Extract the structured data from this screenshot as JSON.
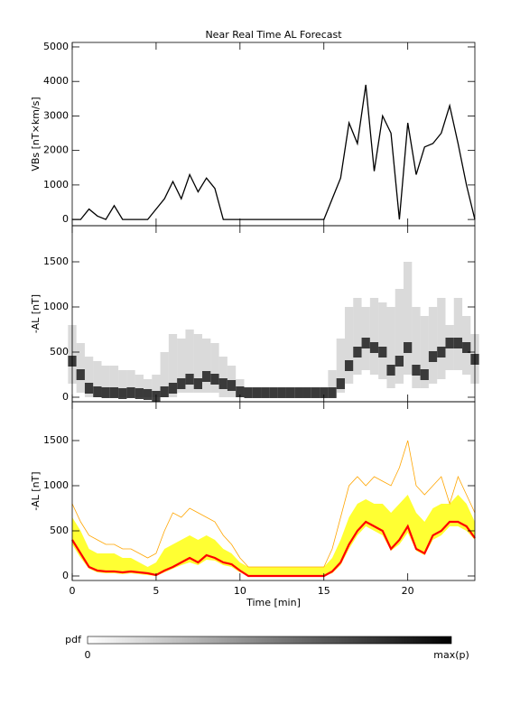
{
  "chart_data": [
    {
      "type": "line",
      "title": "Near Real Time AL Forecast",
      "ylabel": "VBs [nT×km/s]",
      "color": "#000000",
      "x": [
        0,
        0.5,
        1,
        1.5,
        2,
        2.5,
        3,
        3.5,
        4,
        4.5,
        5,
        5.5,
        6,
        6.5,
        7,
        7.5,
        8,
        8.5,
        9,
        9.5,
        10,
        10.5,
        11,
        11.5,
        12,
        12.5,
        13,
        13.5,
        14,
        14.5,
        15,
        15.5,
        16,
        16.5,
        17,
        17.5,
        18,
        18.5,
        19,
        19.5,
        20,
        20.5,
        21,
        21.5,
        22,
        22.5,
        23,
        23.5,
        24
      ],
      "values": [
        0,
        0,
        300,
        100,
        0,
        400,
        0,
        0,
        0,
        0,
        300,
        600,
        1100,
        600,
        1300,
        800,
        1200,
        900,
        0,
        0,
        0,
        0,
        0,
        0,
        0,
        0,
        0,
        0,
        0,
        0,
        0,
        600,
        1200,
        2800,
        2200,
        3900,
        1400,
        3000,
        2500,
        0,
        2800,
        1300,
        2100,
        2200,
        2500,
        3300,
        2200,
        1000,
        0
      ],
      "xlim": [
        0,
        24
      ],
      "xticks": [
        0,
        5,
        10,
        15,
        20
      ],
      "ylim": [
        -180,
        5130
      ],
      "yticks": [
        0,
        1000,
        2000,
        3000,
        4000,
        5000
      ]
    },
    {
      "type": "density",
      "ylabel": "-AL [nT]",
      "x": [
        0,
        0.5,
        1,
        1.5,
        2,
        2.5,
        3,
        3.5,
        4,
        4.5,
        5,
        5.5,
        6,
        6.5,
        7,
        7.5,
        8,
        8.5,
        9,
        9.5,
        10,
        10.5,
        11,
        11.5,
        12,
        12.5,
        13,
        13.5,
        14,
        14.5,
        15,
        15.5,
        16,
        16.5,
        17,
        17.5,
        18,
        18.5,
        19,
        19.5,
        20,
        20.5,
        21,
        21.5,
        22,
        22.5,
        23,
        23.5,
        24
      ],
      "low": [
        150,
        50,
        0,
        0,
        0,
        0,
        0,
        0,
        0,
        0,
        0,
        0,
        0,
        50,
        50,
        50,
        50,
        50,
        0,
        0,
        0,
        0,
        0,
        0,
        0,
        0,
        0,
        0,
        0,
        0,
        0,
        0,
        50,
        150,
        250,
        300,
        250,
        200,
        100,
        150,
        250,
        100,
        100,
        150,
        200,
        300,
        300,
        250,
        150
      ],
      "mode": [
        400,
        250,
        100,
        60,
        50,
        50,
        40,
        50,
        40,
        30,
        10,
        60,
        100,
        150,
        200,
        150,
        230,
        200,
        150,
        130,
        60,
        50,
        50,
        50,
        50,
        50,
        50,
        50,
        50,
        50,
        50,
        50,
        150,
        350,
        500,
        600,
        550,
        500,
        300,
        400,
        550,
        300,
        250,
        450,
        500,
        600,
        600,
        550,
        420
      ],
      "high": [
        800,
        600,
        450,
        400,
        350,
        350,
        300,
        300,
        250,
        200,
        250,
        500,
        700,
        650,
        750,
        700,
        650,
        600,
        450,
        350,
        200,
        100,
        100,
        100,
        100,
        100,
        100,
        100,
        100,
        100,
        100,
        300,
        650,
        1000,
        1100,
        1000,
        1100,
        1050,
        1000,
        1200,
        1500,
        1000,
        900,
        1000,
        1100,
        800,
        1100,
        900,
        700
      ],
      "xlim": [
        0,
        24
      ],
      "xticks": [
        0,
        5,
        10,
        15,
        20
      ],
      "ylim": [
        -50,
        1900
      ],
      "yticks": [
        0,
        500,
        1000,
        1500
      ],
      "colorbar": {
        "label": "pdf",
        "min_label": "0",
        "max_label": "max(p)"
      }
    },
    {
      "type": "band",
      "ylabel": "-AL [nT]",
      "xlabel": "Time [min]",
      "x": [
        0,
        0.5,
        1,
        1.5,
        2,
        2.5,
        3,
        3.5,
        4,
        4.5,
        5,
        5.5,
        6,
        6.5,
        7,
        7.5,
        8,
        8.5,
        9,
        9.5,
        10,
        10.5,
        11,
        11.5,
        12,
        12.5,
        13,
        13.5,
        14,
        14.5,
        15,
        15.5,
        16,
        16.5,
        17,
        17.5,
        18,
        18.5,
        19,
        19.5,
        20,
        20.5,
        21,
        21.5,
        22,
        22.5,
        23,
        23.5,
        24
      ],
      "band": {
        "color": "#ffff33",
        "upper": [
          650,
          500,
          300,
          250,
          250,
          250,
          200,
          200,
          150,
          100,
          150,
          300,
          350,
          400,
          450,
          400,
          450,
          400,
          300,
          250,
          150,
          100,
          100,
          100,
          100,
          100,
          100,
          100,
          100,
          100,
          100,
          200,
          400,
          650,
          800,
          850,
          800,
          800,
          700,
          800,
          900,
          700,
          600,
          750,
          800,
          800,
          900,
          800,
          600
        ],
        "lower": [
          350,
          200,
          80,
          40,
          30,
          30,
          20,
          30,
          20,
          10,
          0,
          40,
          80,
          120,
          150,
          120,
          180,
          170,
          120,
          100,
          40,
          0,
          0,
          0,
          0,
          0,
          0,
          0,
          0,
          0,
          0,
          30,
          120,
          300,
          450,
          550,
          500,
          450,
          280,
          350,
          480,
          280,
          230,
          400,
          450,
          550,
          550,
          500,
          400
        ]
      },
      "series": [
        {
          "color": "#ffa500",
          "values": [
            800,
            600,
            450,
            400,
            350,
            350,
            300,
            300,
            250,
            200,
            250,
            500,
            700,
            650,
            750,
            700,
            650,
            600,
            450,
            350,
            200,
            100,
            100,
            100,
            100,
            100,
            100,
            100,
            100,
            100,
            100,
            300,
            650,
            1000,
            1100,
            1000,
            1100,
            1050,
            1000,
            1200,
            1500,
            1000,
            900,
            1000,
            1100,
            800,
            1100,
            900,
            700
          ]
        },
        {
          "color": "#ff0000",
          "values": [
            400,
            250,
            100,
            60,
            50,
            50,
            40,
            50,
            40,
            30,
            10,
            60,
            100,
            150,
            200,
            150,
            230,
            200,
            150,
            130,
            60,
            0,
            0,
            0,
            0,
            0,
            0,
            0,
            0,
            0,
            0,
            50,
            150,
            350,
            500,
            600,
            550,
            500,
            300,
            400,
            550,
            300,
            250,
            450,
            500,
            600,
            600,
            550,
            420
          ]
        }
      ],
      "xlim": [
        0,
        24
      ],
      "xticks": [
        0,
        5,
        10,
        15,
        20
      ],
      "ylim": [
        -50,
        1930
      ],
      "yticks": [
        0,
        500,
        1000,
        1500
      ]
    }
  ]
}
